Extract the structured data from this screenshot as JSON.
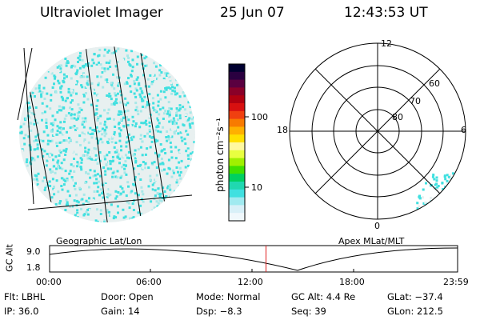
{
  "header": {
    "title": "Ultraviolet Imager",
    "date": "25 Jun 07",
    "time": "12:43:53 UT"
  },
  "colorbar": {
    "label": "photon cm⁻²s⁻¹",
    "ticks": [
      "100",
      "10"
    ],
    "colors": [
      "#000030",
      "#2a0040",
      "#5a0040",
      "#8a0028",
      "#b00010",
      "#d81010",
      "#f04010",
      "#f87a00",
      "#ffb000",
      "#ffe000",
      "#fff8a0",
      "#e8ff40",
      "#a0f000",
      "#40e000",
      "#00d060",
      "#20d8b0",
      "#40e0e0",
      "#a0eaf0",
      "#d8f0f8",
      "#f0f8fc"
    ]
  },
  "left_panel": {
    "label": "Geographic Lat/Lon",
    "disk_colors": [
      "#40e0e0",
      "#e8f0f0"
    ]
  },
  "right_panel": {
    "label": "Apex  MLat/MLT",
    "mlt_labels": {
      "top": "12",
      "left": "18",
      "right": "6",
      "bottom": "0"
    },
    "lat_labels": [
      "60",
      "70",
      "80"
    ]
  },
  "timeline": {
    "axis_label": "GC Alt",
    "y_ticks": [
      "9.0",
      "1.8"
    ],
    "x_ticks": [
      "00:00",
      "06:00",
      "12:00",
      "18:00",
      "23:59"
    ],
    "current_time_fraction": 0.5304,
    "marker_color": "#e02020"
  },
  "info": {
    "filter": "Flt: LBHL",
    "door": "Door: Open",
    "mode": "Mode: Normal",
    "gc_alt": "GC Alt: 4.4 Re",
    "glat": "GLat: −37.4",
    "ip": "IP: 36.0",
    "gain": "Gain: 14",
    "dsp": "Dsp:    −8.3",
    "seq": "Seq: 39",
    "glon": "GLon: 212.5"
  }
}
